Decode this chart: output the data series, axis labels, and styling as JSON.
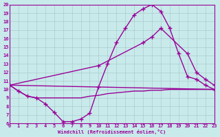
{
  "bg_color": "#c8eaea",
  "grid_color": "#aacccc",
  "line_color": "#990099",
  "xlabel": "Windchill (Refroidissement éolien,°C)",
  "xlim": [
    0,
    23
  ],
  "ylim": [
    6,
    20
  ],
  "xticks": [
    0,
    1,
    2,
    3,
    4,
    5,
    6,
    7,
    8,
    9,
    10,
    11,
    12,
    13,
    14,
    15,
    16,
    17,
    18,
    19,
    20,
    21,
    22,
    23
  ],
  "yticks": [
    6,
    7,
    8,
    9,
    10,
    11,
    12,
    13,
    14,
    15,
    16,
    17,
    18,
    19,
    20
  ],
  "lines": [
    {
      "x": [
        0,
        1,
        2,
        3,
        4,
        5,
        6,
        7,
        8,
        9,
        10,
        11,
        12,
        13,
        14,
        15,
        16,
        17,
        18,
        19,
        20,
        21,
        22,
        23
      ],
      "y": [
        10.5,
        9.8,
        9.2,
        9.0,
        8.3,
        7.3,
        6.2,
        6.2,
        6.5,
        7.2,
        10.3,
        13.0,
        15.5,
        17.2,
        18.8,
        19.5,
        20.0,
        19.2,
        17.2,
        14.2,
        11.5,
        11.2,
        10.5,
        10.0
      ],
      "marker": true,
      "linewidth": 1.0
    },
    {
      "x": [
        0,
        23
      ],
      "y": [
        10.5,
        10.0
      ],
      "marker": false,
      "linewidth": 1.0
    },
    {
      "x": [
        0,
        10,
        15,
        16,
        17,
        20,
        21,
        22,
        23
      ],
      "y": [
        10.5,
        12.8,
        15.5,
        16.2,
        17.2,
        14.2,
        12.0,
        11.2,
        10.5
      ],
      "marker": true,
      "linewidth": 1.0
    },
    {
      "x": [
        0,
        1,
        2,
        3,
        4,
        5,
        6,
        7,
        8,
        9,
        10,
        11,
        12,
        13,
        14,
        15,
        16,
        17,
        18,
        19,
        20,
        21,
        22,
        23
      ],
      "y": [
        10.5,
        9.8,
        9.2,
        9.0,
        9.0,
        9.0,
        9.0,
        9.0,
        9.0,
        9.2,
        9.3,
        9.5,
        9.6,
        9.7,
        9.8,
        9.8,
        9.9,
        9.9,
        10.0,
        10.0,
        10.0,
        10.0,
        10.0,
        10.0
      ],
      "marker": false,
      "linewidth": 1.0
    }
  ]
}
